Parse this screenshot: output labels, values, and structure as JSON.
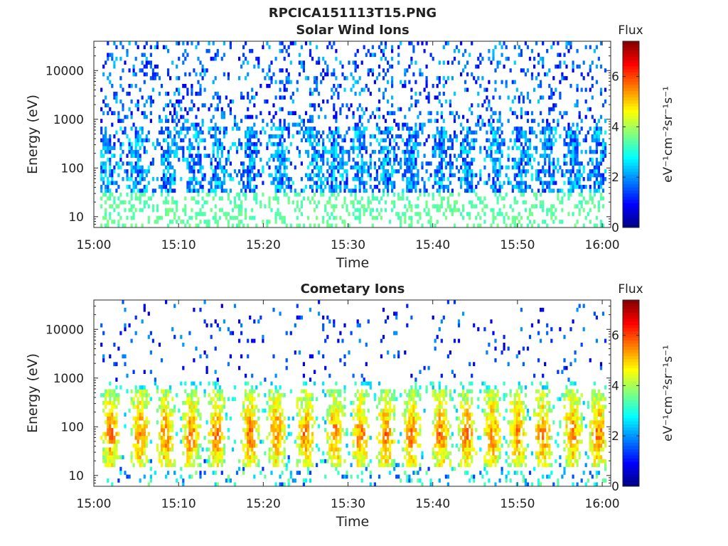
{
  "figure": {
    "title": "RPCICA151113T15.PNG"
  },
  "chart_data": [
    {
      "type": "heatmap",
      "title": "Solar Wind Ions",
      "xlabel": "Time",
      "ylabel": "Energy (eV)",
      "x_ticks": [
        "15:00",
        "15:10",
        "15:20",
        "15:30",
        "15:40",
        "15:50",
        "16:00"
      ],
      "y_ticks": [
        "10",
        "100",
        "1000",
        "10000"
      ],
      "y_scale": "log",
      "ylim": [
        6,
        40000
      ],
      "xlim": [
        "15:00",
        "16:01"
      ],
      "colorbar": {
        "title": "Flux",
        "label": "eV⁻¹cm⁻²sr⁻¹s⁻¹",
        "ticks": [
          "0",
          "2",
          "4",
          "6"
        ],
        "range": [
          0,
          7.4
        ],
        "colormap": "jet"
      },
      "pattern": {
        "bursts_minutes": [
          1.5,
          5,
          9,
          12,
          14.5,
          18.5,
          22,
          26,
          28.5,
          31.5,
          34.5,
          37.5,
          41,
          44,
          47.5,
          50.5,
          53.5,
          56.5,
          59.5
        ],
        "core_energy_range_eV": [
          30,
          600
        ],
        "core_flux": 1.8,
        "background_flux": 1.0,
        "low_energy_flux": 3.2
      }
    },
    {
      "type": "heatmap",
      "title": "Cometary Ions",
      "xlabel": "Time",
      "ylabel": "Energy (eV)",
      "x_ticks": [
        "15:00",
        "15:10",
        "15:20",
        "15:30",
        "15:40",
        "15:50",
        "16:00"
      ],
      "y_ticks": [
        "10",
        "100",
        "1000",
        "10000"
      ],
      "y_scale": "log",
      "ylim": [
        6,
        40000
      ],
      "xlim": [
        "15:00",
        "16:01"
      ],
      "colorbar": {
        "title": "Flux",
        "label": "eV⁻¹cm⁻²sr⁻¹s⁻¹",
        "ticks": [
          "0",
          "2",
          "4",
          "6"
        ],
        "range": [
          0,
          7.4
        ],
        "colormap": "jet"
      },
      "pattern": {
        "bursts_minutes": [
          2,
          5.5,
          8.5,
          11.5,
          14.5,
          18.5,
          21.5,
          25,
          28.5,
          31.5,
          34.5,
          37.5,
          41,
          44,
          47,
          50,
          53,
          56.5,
          59.5
        ],
        "core_energy_range_eV": [
          15,
          600
        ],
        "core_flux": 4.6,
        "peak_flux": 5.6,
        "background_flux": 1.0
      }
    }
  ]
}
